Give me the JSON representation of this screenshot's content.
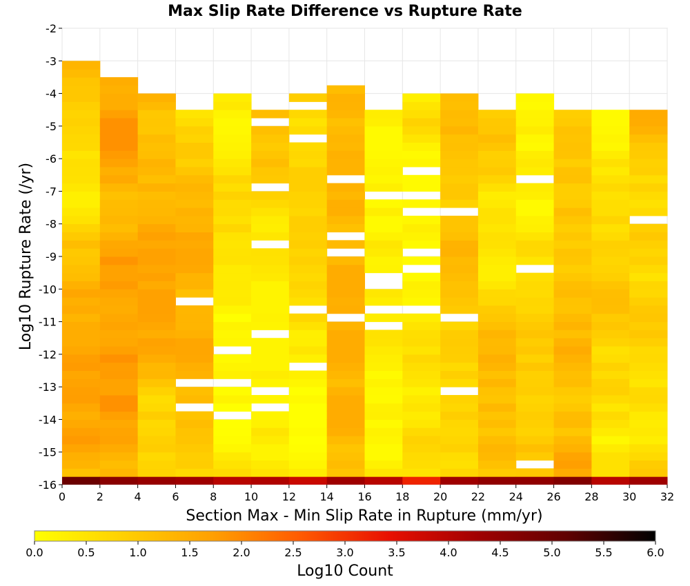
{
  "chart_data": {
    "type": "heatmap",
    "title": "Max Slip Rate Difference vs Rupture Rate",
    "xlabel": "Section Max - Min Slip Rate in Rupture (mm/yr)",
    "ylabel": "Log10 Rupture Rate (/yr)",
    "xlim": [
      0,
      32
    ],
    "ylim": [
      -16,
      -2
    ],
    "x_ticks": [
      "0",
      "2",
      "4",
      "6",
      "8",
      "10",
      "12",
      "14",
      "16",
      "18",
      "20",
      "22",
      "24",
      "26",
      "28",
      "30",
      "32"
    ],
    "y_ticks": [
      "-2",
      "-3",
      "-4",
      "-5",
      "-6",
      "-7",
      "-8",
      "-9",
      "-10",
      "-11",
      "-12",
      "-13",
      "-14",
      "-15",
      "-16"
    ],
    "x_bin_width": 2,
    "y_bin_height": 0.25,
    "grid": true,
    "colorbar": {
      "label": "Log10 Count",
      "range": [
        0,
        6
      ],
      "ticks": [
        "0.0",
        "0.5",
        "1.0",
        "1.5",
        "2.0",
        "2.5",
        "3.0",
        "3.5",
        "4.0",
        "4.5",
        "5.0",
        "5.5",
        "6.0"
      ],
      "colors": [
        "#ffff00",
        "#ffd000",
        "#ffa000",
        "#ff5a00",
        "#e81000",
        "#a00000",
        "#600000",
        "#000000"
      ]
    },
    "columns": [
      {
        "x_bin": [
          0,
          2
        ],
        "top": -3.0,
        "bottom": -16,
        "min": 0.2,
        "max": 2.2,
        "bottom_row_value": 5.0
      },
      {
        "x_bin": [
          2,
          4
        ],
        "top": -3.5,
        "bottom": -16,
        "min": 0.3,
        "max": 1.9,
        "bottom_row_value": 4.6
      },
      {
        "x_bin": [
          4,
          6
        ],
        "top": -4.2,
        "bottom": -16,
        "min": 0.1,
        "max": 1.7,
        "bottom_row_value": 4.4
      },
      {
        "x_bin": [
          6,
          8
        ],
        "top": -4.5,
        "bottom": -16,
        "min": 0.1,
        "max": 1.6,
        "bottom_row_value": 4.3
      },
      {
        "x_bin": [
          8,
          10
        ],
        "top": -4.2,
        "bottom": -16,
        "min": 0.0,
        "max": 1.0,
        "bottom_row_value": 4.0
      },
      {
        "x_bin": [
          10,
          12
        ],
        "top": -4.5,
        "bottom": -16,
        "min": 0.2,
        "max": 1.2,
        "bottom_row_value": 4.1
      },
      {
        "x_bin": [
          12,
          14
        ],
        "top": -3.8,
        "bottom": -16,
        "min": 0.0,
        "max": 0.9,
        "bottom_row_value": 3.8
      },
      {
        "x_bin": [
          14,
          16
        ],
        "top": -3.8,
        "bottom": -16,
        "min": 0.2,
        "max": 1.5,
        "bottom_row_value": 4.3
      },
      {
        "x_bin": [
          16,
          18
        ],
        "top": -4.5,
        "bottom": -16,
        "min": 0.1,
        "max": 1.3,
        "bottom_row_value": 4.0
      },
      {
        "x_bin": [
          18,
          20
        ],
        "top": -4.2,
        "bottom": -16,
        "min": 0.1,
        "max": 1.0,
        "bottom_row_value": 3.2
      },
      {
        "x_bin": [
          20,
          22
        ],
        "top": -4.2,
        "bottom": -16,
        "min": 0.3,
        "max": 1.4,
        "bottom_row_value": 4.3
      },
      {
        "x_bin": [
          22,
          24
        ],
        "top": -4.5,
        "bottom": -16,
        "min": 0.3,
        "max": 1.8,
        "bottom_row_value": 4.5
      },
      {
        "x_bin": [
          24,
          26
        ],
        "top": -4.2,
        "bottom": -16,
        "min": 0.1,
        "max": 1.5,
        "bottom_row_value": 4.5
      },
      {
        "x_bin": [
          26,
          28
        ],
        "top": -4.5,
        "bottom": -16,
        "min": 0.9,
        "max": 2.0,
        "bottom_row_value": 4.7
      },
      {
        "x_bin": [
          28,
          30
        ],
        "top": -4.5,
        "bottom": -16,
        "min": 0.1,
        "max": 1.3,
        "bottom_row_value": 4.0
      },
      {
        "x_bin": [
          30,
          32
        ],
        "top": -4.5,
        "bottom": -16,
        "min": 0.2,
        "max": 1.6,
        "bottom_row_value": 4.3
      }
    ]
  }
}
